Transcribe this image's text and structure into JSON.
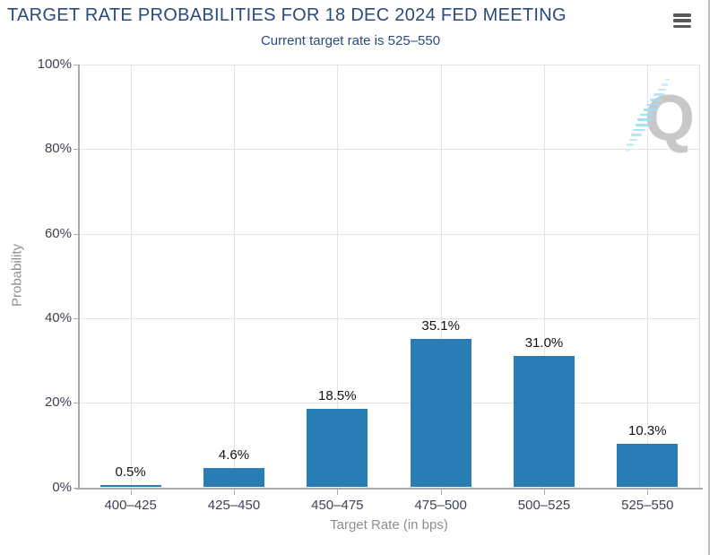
{
  "header": {
    "title": "TARGET RATE PROBABILITIES FOR 18 DEC 2024 FED MEETING",
    "subtitle": "Current target rate is 525–550",
    "menu_icon": "hamburger-icon"
  },
  "watermark": {
    "letter": "Q"
  },
  "colors": {
    "title_navy": "#2b4a7e",
    "bar_blue": "#2a7cb5",
    "grid_line": "#e3e3e3",
    "axis_line": "#ababab",
    "tick_label": "#3f4254",
    "axis_title": "#8e8e8e",
    "value_label": "#121212",
    "menu_icon": "#58595b",
    "watermark_gray": "#c8c8c8",
    "watermark_blue": "#9edff5",
    "panel_border": "#bdbdbd"
  },
  "chart_data": {
    "type": "bar",
    "title": "TARGET RATE PROBABILITIES FOR 18 DEC 2024 FED MEETING",
    "subtitle": "Current target rate is 525–550",
    "categories": [
      "400–425",
      "425–450",
      "450–475",
      "475–500",
      "500–525",
      "525–550"
    ],
    "values": [
      0.5,
      4.6,
      18.5,
      35.1,
      31.0,
      10.3
    ],
    "value_labels": [
      "0.5%",
      "4.6%",
      "18.5%",
      "35.1%",
      "31.0%",
      "10.3%"
    ],
    "xlabel": "Target Rate (in bps)",
    "ylabel": "Probability",
    "ylim": [
      0,
      100
    ],
    "yticks": [
      0,
      20,
      40,
      60,
      80,
      100
    ],
    "ytick_labels": [
      "0%",
      "20%",
      "40%",
      "60%",
      "80%",
      "100%"
    ],
    "grid": true,
    "legend": "none"
  }
}
